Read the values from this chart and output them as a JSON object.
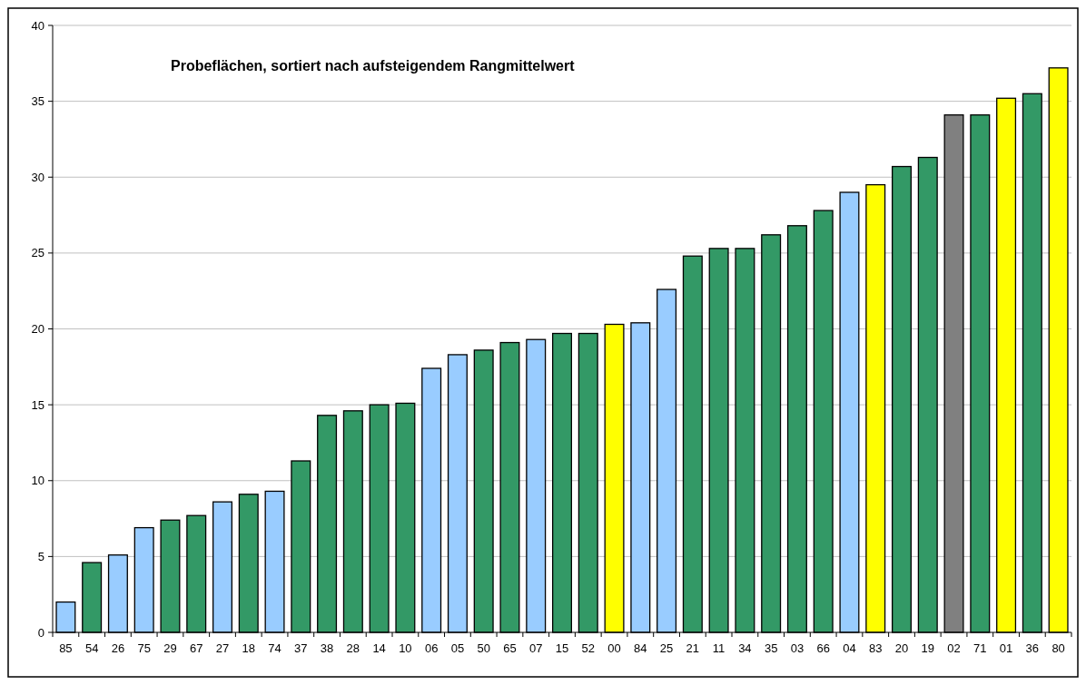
{
  "chart_data": {
    "type": "bar",
    "title": "Probeflächen, sortiert nach aufsteigendem Rangmittelwert",
    "categories": [
      "85",
      "54",
      "26",
      "75",
      "29",
      "67",
      "27",
      "18",
      "74",
      "37",
      "38",
      "28",
      "14",
      "10",
      "06",
      "05",
      "50",
      "65",
      "07",
      "15",
      "52",
      "00",
      "84",
      "25",
      "21",
      "11",
      "34",
      "35",
      "03",
      "66",
      "04",
      "83",
      "20",
      "19",
      "02",
      "71",
      "01",
      "36",
      "80"
    ],
    "values": [
      2.0,
      4.6,
      5.1,
      6.9,
      7.4,
      7.7,
      8.6,
      9.1,
      9.3,
      11.3,
      14.3,
      14.6,
      15.0,
      15.1,
      17.4,
      18.3,
      18.6,
      19.1,
      19.3,
      19.7,
      19.7,
      20.3,
      20.4,
      22.6,
      24.8,
      25.3,
      25.3,
      26.2,
      26.8,
      27.8,
      29.0,
      29.5,
      30.7,
      31.3,
      34.1,
      34.1,
      35.2,
      35.5,
      37.2
    ],
    "colors": [
      "#99ccff",
      "#339966",
      "#99ccff",
      "#99ccff",
      "#339966",
      "#339966",
      "#99ccff",
      "#339966",
      "#99ccff",
      "#339966",
      "#339966",
      "#339966",
      "#339966",
      "#339966",
      "#99ccff",
      "#99ccff",
      "#339966",
      "#339966",
      "#99ccff",
      "#339966",
      "#339966",
      "#ffff00",
      "#99ccff",
      "#99ccff",
      "#339966",
      "#339966",
      "#339966",
      "#339966",
      "#339966",
      "#339966",
      "#99ccff",
      "#ffff00",
      "#339966",
      "#339966",
      "#808080",
      "#339966",
      "#ffff00",
      "#339966",
      "#ffff00"
    ],
    "ylim": [
      0,
      40
    ],
    "yticks": [
      0,
      5,
      10,
      15,
      20,
      25,
      30,
      35,
      40
    ],
    "grid": "y"
  }
}
